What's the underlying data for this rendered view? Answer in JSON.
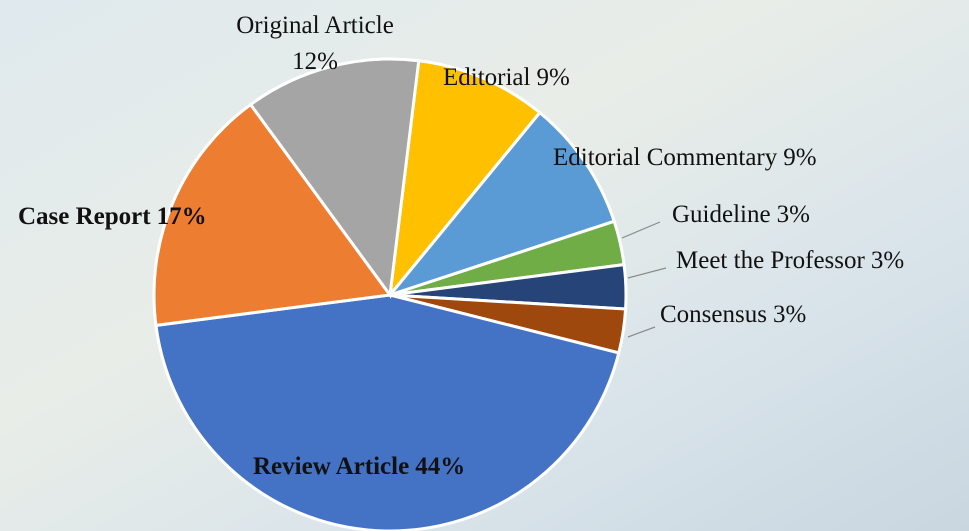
{
  "chart_data": {
    "type": "pie",
    "categories": [
      "Editorial",
      "Editorial Commentary",
      "Guideline",
      "Meet the Professor",
      "Consensus",
      "Review Article",
      "Case Report",
      "Original Article"
    ],
    "values": [
      9,
      9,
      3,
      3,
      3,
      44,
      17,
      12
    ],
    "value_labels": [
      "9%",
      "9%",
      "3%",
      "3%",
      "3%",
      "44%",
      "17%",
      "12%"
    ],
    "colors": [
      "#ffc000",
      "#5b9bd5",
      "#70ad47",
      "#264478",
      "#9e480e",
      "#4472c4",
      "#ed7d31",
      "#a5a5a5"
    ]
  }
}
